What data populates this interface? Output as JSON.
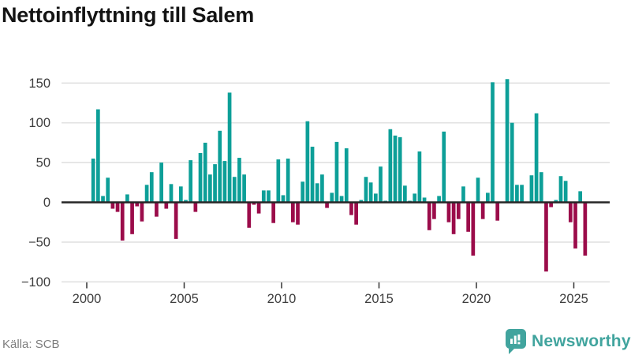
{
  "header": {
    "title": "Nettoinflyttning till Salem"
  },
  "footer": {
    "source": "Källa: SCB",
    "brand": "Newsworthy"
  },
  "colors": {
    "positive": "#0d9f98",
    "negative": "#9b0c4a",
    "zero_axis": "#262626",
    "grid": "#e1e1e1",
    "axis_text": "#3d3d3d",
    "tick_mark": "#333333",
    "source_text": "#7d7d7d",
    "brand_teal": "#41a49e"
  },
  "chart_data": {
    "type": "bar",
    "title": "Nettoinflyttning till Salem",
    "xlabel": "",
    "ylabel": "",
    "frequency": "quarterly",
    "start": "2000-Q2",
    "end": "2025-Q3",
    "grid": true,
    "legend": false,
    "ylim": [
      -100,
      150
    ],
    "yticks": [
      150,
      100,
      50,
      0,
      -50,
      -100
    ],
    "xticks": [
      2000,
      2005,
      2010,
      2015,
      2020,
      2025
    ],
    "values_by_year": {
      "2000": [
        null,
        55,
        117,
        8
      ],
      "2001": [
        31,
        -8,
        -12,
        -48
      ],
      "2002": [
        10,
        -40,
        -5,
        -24
      ],
      "2003": [
        22,
        38,
        -18,
        50
      ],
      "2004": [
        -8,
        23,
        -46,
        20
      ],
      "2005": [
        3,
        53,
        -12,
        62
      ],
      "2006": [
        75,
        35,
        48,
        90
      ],
      "2007": [
        52,
        138,
        32,
        56
      ],
      "2008": [
        35,
        -32,
        -3,
        -14
      ],
      "2009": [
        15,
        15,
        -26,
        54
      ],
      "2010": [
        9,
        55,
        -25,
        -28
      ],
      "2011": [
        26,
        102,
        70,
        24
      ],
      "2012": [
        35,
        -7,
        12,
        76
      ],
      "2013": [
        8,
        68,
        -16,
        -28
      ],
      "2014": [
        3,
        32,
        25,
        11
      ],
      "2015": [
        45,
        2,
        92,
        84
      ],
      "2016": [
        82,
        21,
        2,
        11
      ],
      "2017": [
        64,
        6,
        -35,
        -21
      ],
      "2018": [
        8,
        89,
        -25,
        -40
      ],
      "2019": [
        -21,
        20,
        -37,
        -67
      ],
      "2020": [
        31,
        -21,
        12,
        151
      ],
      "2021": [
        -23,
        0,
        155,
        100
      ],
      "2022": [
        22,
        22,
        0,
        34
      ],
      "2023": [
        112,
        38,
        -87,
        -6
      ],
      "2024": [
        3,
        33,
        27,
        -25
      ],
      "2025": [
        -58,
        14,
        -67
      ]
    }
  }
}
